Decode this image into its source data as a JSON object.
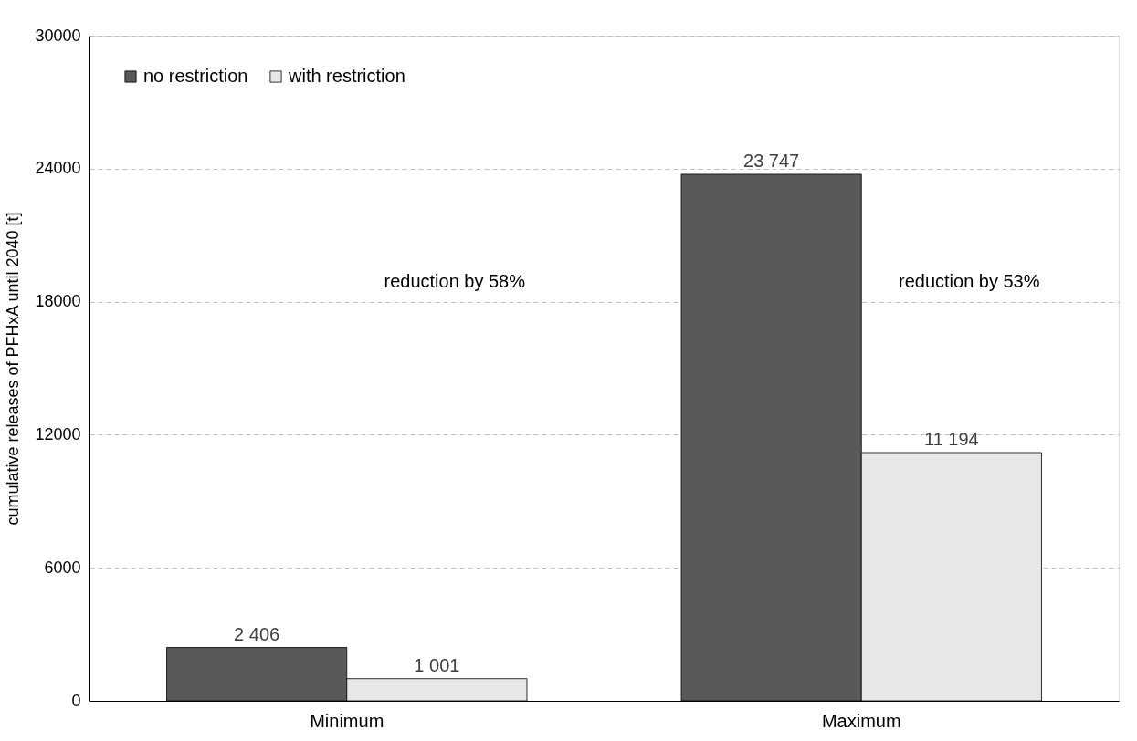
{
  "chart_data": {
    "type": "bar",
    "ylabel": "cumulative releases of PFHxA until 2040 [t]",
    "categories": [
      "Minimum",
      "Maximum"
    ],
    "series": [
      {
        "name": "no restriction",
        "color": "#595959",
        "values": [
          2406,
          23747
        ],
        "value_labels": [
          "2 406",
          "23 747"
        ]
      },
      {
        "name": "with restriction",
        "color": "#e7e7e7",
        "values": [
          1001,
          11194
        ],
        "value_labels": [
          "1 001",
          "11 194"
        ]
      }
    ],
    "ylim": [
      0,
      30000
    ],
    "yticks": [
      0,
      6000,
      12000,
      18000,
      24000,
      30000
    ],
    "grid": "y",
    "legend": "top left",
    "annotations": [
      "reduction by 58%",
      "reduction by 53%"
    ]
  }
}
